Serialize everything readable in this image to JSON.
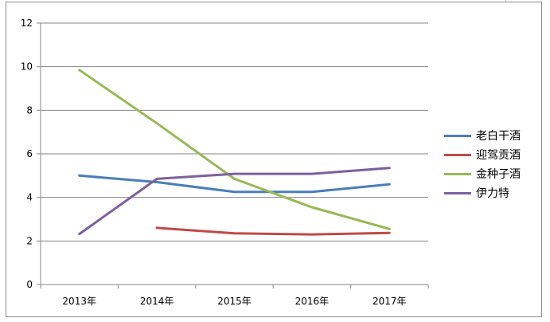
{
  "chart_data": {
    "type": "line",
    "categories": [
      "2013年",
      "2014年",
      "2015年",
      "2016年",
      "2017年"
    ],
    "ylim": [
      0,
      12
    ],
    "yticks": [
      "0",
      "2",
      "4",
      "6",
      "8",
      "10",
      "12"
    ],
    "grid": true,
    "legend_position": "right",
    "series": [
      {
        "name": "老白干酒",
        "color": "#4a7ebb",
        "values": [
          5.0,
          4.7,
          4.25,
          4.25,
          4.6
        ]
      },
      {
        "name": "迎驾贡酒",
        "color": "#be4b48",
        "values": [
          null,
          2.6,
          2.35,
          2.3,
          2.37
        ]
      },
      {
        "name": "金种子酒",
        "color": "#98b954",
        "values": [
          9.85,
          7.4,
          4.85,
          3.55,
          2.55
        ]
      },
      {
        "name": "伊力特",
        "color": "#7d60a0",
        "values": [
          2.32,
          4.85,
          5.08,
          5.08,
          5.35
        ]
      }
    ]
  }
}
